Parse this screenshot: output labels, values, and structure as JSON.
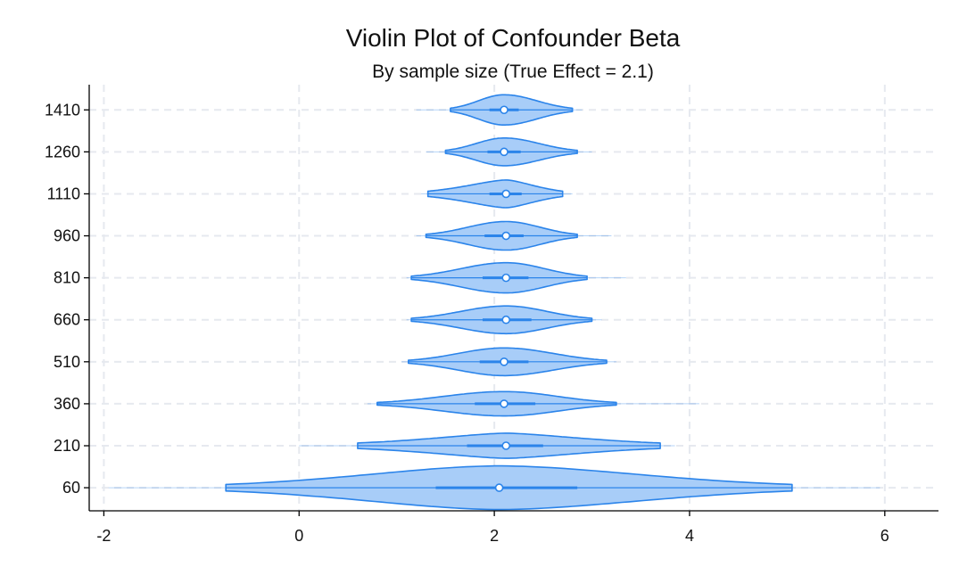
{
  "chart_data": {
    "type": "violin",
    "title": "Violin Plot of Confounder Beta",
    "subtitle": "By sample size (True Effect = 2.1)",
    "xlabel": "",
    "ylabel": "",
    "xlim": [
      -2.15,
      6.55
    ],
    "x_ticks": [
      "-2",
      "0",
      "2",
      "4",
      "6"
    ],
    "grid": true,
    "colors": {
      "fill": "#a8cdf8",
      "stroke": "#2b84ea",
      "median_marker": "#ffffff"
    },
    "categories": [
      "1410",
      "1260",
      "1110",
      "960",
      "810",
      "660",
      "510",
      "360",
      "210",
      "60"
    ],
    "series": [
      {
        "n": "1410",
        "median": 2.1,
        "q1": 1.95,
        "q3": 2.25,
        "min": 1.55,
        "max": 2.8,
        "tail_min": 1.2,
        "tail_max": 2.9,
        "dmax": 0.36,
        "stretch": 1.0
      },
      {
        "n": "1260",
        "median": 2.1,
        "q1": 1.93,
        "q3": 2.27,
        "min": 1.5,
        "max": 2.85,
        "tail_min": 1.3,
        "tail_max": 3.0,
        "dmax": 0.33,
        "stretch": 1.0
      },
      {
        "n": "1110",
        "median": 2.12,
        "q1": 1.95,
        "q3": 2.28,
        "min": 1.32,
        "max": 2.7,
        "tail_min": 1.25,
        "tail_max": 2.8,
        "dmax": 0.33,
        "stretch": 0.8
      },
      {
        "n": "960",
        "median": 2.12,
        "q1": 1.9,
        "q3": 2.3,
        "min": 1.3,
        "max": 2.85,
        "tail_min": 1.2,
        "tail_max": 3.2,
        "dmax": 0.34,
        "stretch": 1.0
      },
      {
        "n": "810",
        "median": 2.12,
        "q1": 1.88,
        "q3": 2.35,
        "min": 1.15,
        "max": 2.95,
        "tail_min": 1.1,
        "tail_max": 3.35,
        "dmax": 0.36,
        "stretch": 1.0
      },
      {
        "n": "660",
        "median": 2.12,
        "q1": 1.88,
        "q3": 2.38,
        "min": 1.15,
        "max": 3.0,
        "tail_min": 1.1,
        "tail_max": 3.1,
        "dmax": 0.33,
        "stretch": 1.0
      },
      {
        "n": "510",
        "median": 2.1,
        "q1": 1.85,
        "q3": 2.35,
        "min": 1.12,
        "max": 3.15,
        "tail_min": 1.05,
        "tail_max": 3.25,
        "dmax": 0.33,
        "stretch": 1.0
      },
      {
        "n": "360",
        "median": 2.1,
        "q1": 1.8,
        "q3": 2.42,
        "min": 0.8,
        "max": 3.25,
        "tail_min": 0.7,
        "tail_max": 4.1,
        "dmax": 0.29,
        "stretch": 1.0
      },
      {
        "n": "210",
        "median": 2.12,
        "q1": 1.72,
        "q3": 2.5,
        "min": 0.6,
        "max": 3.7,
        "tail_min": 0.0,
        "tail_max": 3.85,
        "dmax": 0.3,
        "stretch": 0.75
      },
      {
        "n": "60",
        "median": 2.05,
        "q1": 1.4,
        "q3": 2.85,
        "min": -0.75,
        "max": 5.05,
        "tail_min": -1.95,
        "tail_max": 5.95,
        "dmax": 0.52,
        "stretch": 0.9
      }
    ]
  }
}
